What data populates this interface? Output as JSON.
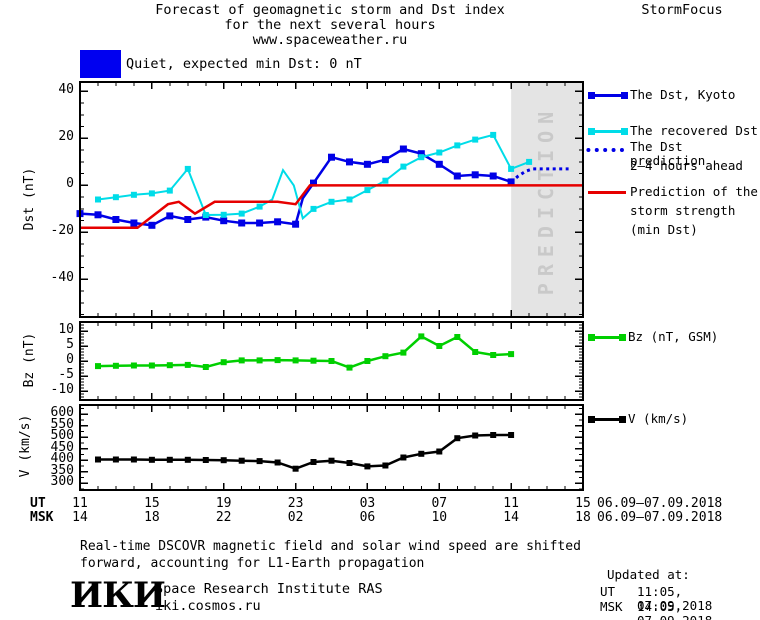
{
  "title": {
    "line1": "Forecast of geomagnetic storm and Dst index",
    "line2": "for the next several hours",
    "line3": "www.spaceweather.ru"
  },
  "brand": "StormFocus",
  "status_banner": {
    "text": "Quiet, expected min Dst: 0 nT",
    "swatch_color": "#0000f0"
  },
  "legend": {
    "dst1": {
      "label": "The Dst, Kyoto",
      "color": "#0000e6"
    },
    "dst2": {
      "label": "The recovered Dst",
      "color": "#00dce8"
    },
    "dst3": {
      "label_line1": "The Dst prediction",
      "label_line2": "2–4 hours ahead",
      "color": "#0000e6"
    },
    "dst4": {
      "label_line1": "Prediction of the",
      "label_line2": "storm strength",
      "label_line3": "(min Dst)",
      "color": "#e60000"
    },
    "bz": {
      "label": "Bz (nT, GSM)",
      "color": "#00cf00"
    },
    "v": {
      "label": "V (km/s)",
      "color": "#000000"
    }
  },
  "prediction_band": {
    "label": "PREDICTION",
    "fill": "#e4e4e4",
    "text_color": "#c9c9c9"
  },
  "footnote": {
    "line1": "Real-time DSCOVR magnetic field and solar wind speed are shifted",
    "line2": "forward, accounting for L1-Earth propagation"
  },
  "footer": {
    "logo": "ИКИ",
    "institute_line1": "Space Research Institute RAS",
    "institute_line2": "iki.cosmos.ru",
    "updated_label": "Updated at:",
    "updated_ut_label": "UT",
    "updated_ut_value": "11:05, 07.09.2018",
    "updated_msk_label": "MSK",
    "updated_msk_value": "14:05, 07.09.2018"
  },
  "chart_data": {
    "type": "line",
    "x": {
      "tmin": 0,
      "tmax": 28,
      "major_step": 4,
      "minor_step": 1,
      "ut_row": "UT",
      "msk_row": "MSK",
      "ut_labels": [
        "11",
        "15",
        "19",
        "23",
        "03",
        "07",
        "11",
        "15"
      ],
      "msk_labels": [
        "14",
        "18",
        "22",
        "02",
        "06",
        "10",
        "14",
        "18"
      ],
      "ut_date": "06.09–07.09.2018",
      "msk_date": "06.09–07.09.2018"
    },
    "prediction_band": {
      "t0": 24,
      "t1": 28
    },
    "panels": [
      {
        "id": "dst",
        "ylabel": "Dst (nT)",
        "ylim": [
          -56,
          44
        ],
        "yticks": [
          40,
          20,
          0,
          -20,
          -40
        ],
        "minor": 5,
        "series": [
          {
            "name": "The Dst, Kyoto",
            "color": "#0000e6",
            "width": 2.5,
            "style": "solid",
            "marker": 7,
            "points": [
              [
                0,
                -12
              ],
              [
                1,
                -12.5
              ],
              [
                2,
                -14.5
              ],
              [
                3,
                -16
              ],
              [
                4,
                -17
              ],
              [
                5,
                -13
              ],
              [
                6,
                -14.5
              ],
              [
                7,
                -13.5
              ],
              [
                8,
                -15
              ],
              [
                9,
                -16
              ],
              [
                10,
                -16
              ],
              [
                11,
                -15.5
              ],
              [
                12,
                -16.5
              ],
              [
                12.4,
                -5.5
              ],
              [
                13,
                1
              ],
              [
                14,
                12
              ],
              [
                15,
                10
              ],
              [
                16,
                9
              ],
              [
                17,
                11
              ],
              [
                18,
                15.5
              ],
              [
                19,
                13.5
              ],
              [
                20,
                9
              ],
              [
                21,
                4
              ],
              [
                22,
                4.5
              ],
              [
                23,
                4
              ],
              [
                24,
                1.5
              ]
            ]
          },
          {
            "name": "The Dst prediction 2-4 hours ahead",
            "color": "#0000e6",
            "width": 3,
            "style": "dotted",
            "marker": 0,
            "points": [
              [
                24,
                1.5
              ],
              [
                24.4,
                4
              ],
              [
                24.8,
                6
              ],
              [
                25.2,
                7
              ],
              [
                27.2,
                7
              ]
            ]
          },
          {
            "name": "The recovered Dst",
            "color": "#00dce8",
            "width": 2,
            "style": "solid",
            "marker": 6,
            "points": [
              [
                1,
                -6
              ],
              [
                2,
                -5
              ],
              [
                3,
                -4
              ],
              [
                4,
                -3.4
              ],
              [
                5,
                -2.2
              ],
              [
                6,
                7
              ],
              [
                7,
                -12.6
              ],
              [
                8,
                -12.5
              ],
              [
                9,
                -12
              ],
              [
                10,
                -9
              ],
              [
                10.7,
                -6
              ],
              [
                11.3,
                6.5
              ],
              [
                11.9,
                0
              ],
              [
                12.4,
                -14
              ],
              [
                13,
                -10
              ],
              [
                14,
                -7
              ],
              [
                15,
                -6
              ],
              [
                16,
                -2
              ],
              [
                17,
                2
              ],
              [
                18,
                8
              ],
              [
                19,
                12
              ],
              [
                20,
                14
              ],
              [
                21,
                17
              ],
              [
                22,
                19.5
              ],
              [
                23,
                21.5
              ],
              [
                24,
                7
              ],
              [
                25,
                10
              ]
            ]
          },
          {
            "name": "Prediction of the storm strength (min Dst)",
            "color": "#e60000",
            "width": 2.5,
            "style": "solid",
            "marker": 0,
            "points": [
              [
                0,
                -18
              ],
              [
                3.2,
                -18
              ],
              [
                4.9,
                -8
              ],
              [
                5.5,
                -7
              ],
              [
                6.4,
                -12
              ],
              [
                7.5,
                -7
              ],
              [
                9,
                -7
              ],
              [
                11,
                -7
              ],
              [
                12,
                -8
              ],
              [
                12.8,
                0
              ],
              [
                28,
                0
              ]
            ]
          }
        ]
      },
      {
        "id": "bz",
        "ylabel": "Bz (nT)",
        "ylim": [
          -13,
          13
        ],
        "yticks": [
          10,
          5,
          0,
          -5,
          -10
        ],
        "minor": 1,
        "series": [
          {
            "name": "Bz (nT, GSM)",
            "color": "#00cf00",
            "width": 2.5,
            "style": "solid",
            "marker": 6,
            "points": [
              [
                1,
                -1.7
              ],
              [
                2,
                -1.6
              ],
              [
                3,
                -1.5
              ],
              [
                4,
                -1.5
              ],
              [
                5,
                -1.4
              ],
              [
                6,
                -1.3
              ],
              [
                7,
                -2
              ],
              [
                8,
                -0.4
              ],
              [
                9,
                0.2
              ],
              [
                10,
                0.2
              ],
              [
                11,
                0.3
              ],
              [
                12,
                0.2
              ],
              [
                13,
                0.1
              ],
              [
                14,
                0
              ],
              [
                15,
                -2.2
              ],
              [
                16,
                0
              ],
              [
                17,
                1.6
              ],
              [
                18,
                2.8
              ],
              [
                19,
                8.2
              ],
              [
                20,
                5
              ],
              [
                21,
                8
              ],
              [
                22,
                3
              ],
              [
                23,
                2
              ],
              [
                24,
                2.3
              ]
            ]
          }
        ]
      },
      {
        "id": "v",
        "ylabel": "V (km/s)",
        "ylim": [
          270,
          641
        ],
        "yticks": [
          600,
          550,
          500,
          450,
          400,
          350,
          300
        ],
        "minor": 25,
        "series": [
          {
            "name": "V (km/s)",
            "color": "#000000",
            "width": 2.5,
            "style": "solid",
            "marker": 6,
            "points": [
              [
                1,
                403
              ],
              [
                2,
                403
              ],
              [
                3,
                403
              ],
              [
                4,
                402
              ],
              [
                5,
                402
              ],
              [
                6,
                402
              ],
              [
                7,
                401
              ],
              [
                8,
                400
              ],
              [
                9,
                398
              ],
              [
                10,
                396
              ],
              [
                11,
                390
              ],
              [
                12,
                363
              ],
              [
                13,
                392
              ],
              [
                14,
                398
              ],
              [
                15,
                388
              ],
              [
                16,
                373
              ],
              [
                17,
                377
              ],
              [
                18,
                412
              ],
              [
                19,
                428
              ],
              [
                20,
                438
              ],
              [
                21,
                496
              ],
              [
                22,
                508
              ],
              [
                23,
                510
              ],
              [
                24,
                510
              ]
            ]
          }
        ]
      }
    ]
  }
}
